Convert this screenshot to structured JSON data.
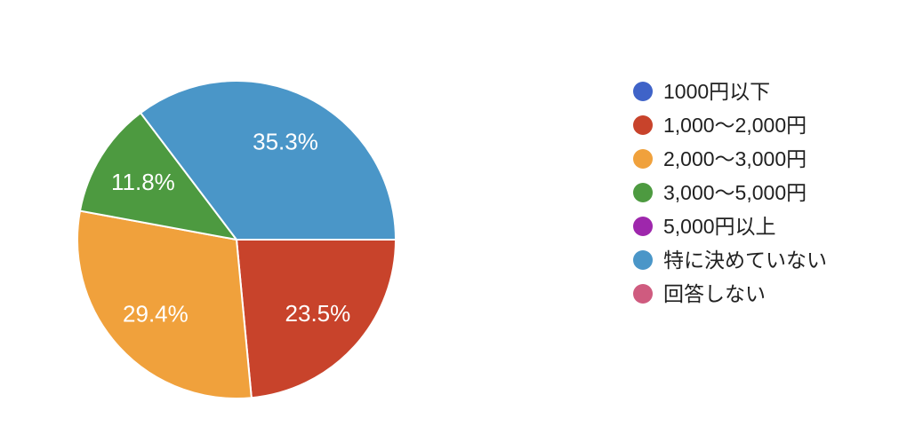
{
  "page": {
    "background_color": "#ffffff",
    "title": ""
  },
  "chart_data": {
    "type": "pie",
    "title": "",
    "categories": [
      "1000円以下",
      "1,000〜2,000円",
      "2,000〜3,000円",
      "3,000〜5,000円",
      "5,000円以上",
      "特に決めていない",
      "回答しない"
    ],
    "values": [
      0,
      23.5,
      29.4,
      11.8,
      0,
      35.3,
      0
    ],
    "unit": "%",
    "slice_labels": [
      "",
      "23.5%",
      "29.4%",
      "11.8%",
      "",
      "35.3%",
      ""
    ],
    "colors": [
      "#3F63C8",
      "#C8432B",
      "#F0A13C",
      "#4D9A40",
      "#9E27AC",
      "#4A96C8",
      "#CF5B7F"
    ],
    "slice_border_color": "#ffffff",
    "slice_label_color": "#ffffff",
    "legend_position": "right",
    "legend_text_color": "#212121",
    "start_angle_deg": 90,
    "direction": "clockwise"
  }
}
